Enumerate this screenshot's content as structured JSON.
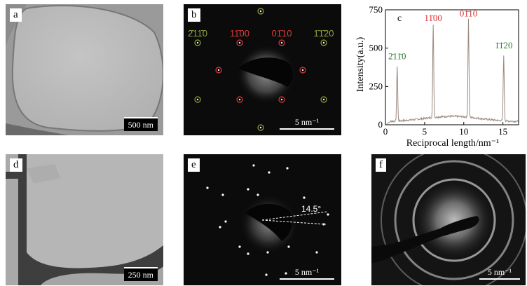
{
  "panels": {
    "a": {
      "label": "a",
      "scale_bar": "500 nm"
    },
    "b": {
      "label": "b",
      "scale_bar": "5 nm⁻¹",
      "index_labels": [
        {
          "text": "2̄11̄0",
          "color": "#8fa83a"
        },
        {
          "text": "11̄00",
          "color": "#e03a3a"
        },
        {
          "text": "01̄10",
          "color": "#e03a3a"
        },
        {
          "text": "1̄1̄20",
          "color": "#8fa83a"
        }
      ]
    },
    "c": {
      "label": "c"
    },
    "d": {
      "label": "d",
      "scale_bar": "250 nm"
    },
    "e": {
      "label": "e",
      "scale_bar": "5 nm⁻¹",
      "angle_label": "14.5°"
    },
    "f": {
      "label": "f",
      "scale_bar": "5 nm⁻¹"
    }
  },
  "chart_data": {
    "type": "line",
    "xlabel": "Reciprocal length/nm⁻¹",
    "ylabel": "Intensity(a.u.)",
    "xlim": [
      0,
      17
    ],
    "ylim": [
      0,
      750
    ],
    "xticks": [
      0,
      5,
      10,
      15
    ],
    "yticks": [
      0,
      250,
      500,
      750
    ],
    "peaks": [
      {
        "x": 1.5,
        "y": 400,
        "label": "2̄11̄0",
        "color": "#2e7d32"
      },
      {
        "x": 6.1,
        "y": 650,
        "label": "11̄00",
        "color": "#e03030"
      },
      {
        "x": 10.6,
        "y": 680,
        "label": "01̄10",
        "color": "#e03030"
      },
      {
        "x": 15.1,
        "y": 470,
        "label": "1̄1̄20",
        "color": "#2e7d32"
      }
    ],
    "line_color": "#9a8a80"
  }
}
